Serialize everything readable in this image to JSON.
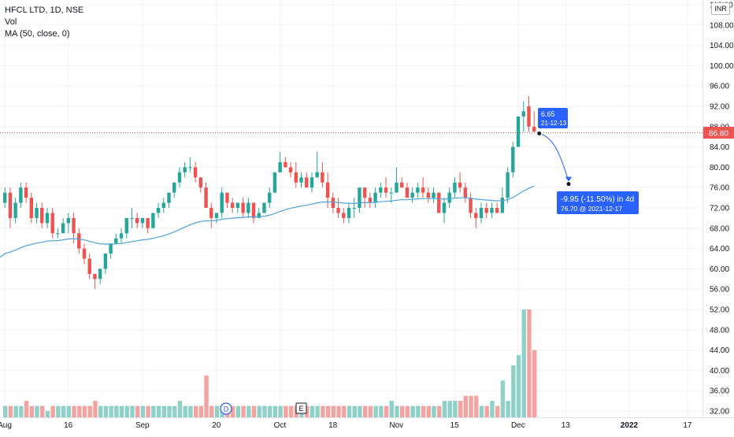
{
  "legend": {
    "symbol": "HFCL LTD, 1D, NSE",
    "vol": "Vol",
    "ma": "MA (50, close, 0)"
  },
  "currency": "INR",
  "last_price": "86.80",
  "colors": {
    "up": "#26a69a",
    "down": "#ef5350",
    "up_vol": "#8fd1c8",
    "down_vol": "#f3a3a0",
    "ma": "#4fa3dc",
    "measure": "#2962ff",
    "last_price": "#ef5350"
  },
  "annotations": {
    "start_box_value": "6.65",
    "start_box_date": "21-12-13",
    "measure_line1": "-9.95 (-11.50%) in 4d",
    "measure_line2": "76.70 @ 2021-12-17",
    "dividend_marker": "D",
    "earnings_marker": "E"
  },
  "chart_data": {
    "type": "candlestick",
    "title": "HFCL LTD, 1D, NSE",
    "ylim": [
      30,
      112
    ],
    "y_ticks": [
      "112.00",
      "108.00",
      "104.00",
      "100.00",
      "96.00",
      "92.00",
      "88.00",
      "84.00",
      "80.00",
      "76.00",
      "72.00",
      "68.00",
      "64.00",
      "60.00",
      "56.00",
      "52.00",
      "48.00",
      "44.00",
      "40.00",
      "36.00",
      "32.00"
    ],
    "x_ticks": [
      "Aug",
      "16",
      "Sep",
      "20",
      "Oct",
      "18",
      "Nov",
      "15",
      "Dec",
      "13",
      "2022",
      "17"
    ],
    "last_price": 86.8,
    "series": [
      {
        "name": "Price",
        "ohlc": [
          [
            73,
            76,
            72,
            75
          ],
          [
            75,
            76,
            68,
            70
          ],
          [
            70,
            74,
            69,
            73
          ],
          [
            73,
            77,
            72,
            76
          ],
          [
            76,
            77,
            73,
            74
          ],
          [
            74,
            75,
            69,
            70
          ],
          [
            70,
            73,
            69,
            72
          ],
          [
            72,
            73,
            68,
            69
          ],
          [
            69,
            72,
            68,
            71
          ],
          [
            71,
            72,
            66,
            67
          ],
          [
            67,
            68,
            66,
            67
          ],
          [
            67,
            70,
            67,
            69
          ],
          [
            69,
            71,
            67,
            70
          ],
          [
            70,
            71,
            65,
            67
          ],
          [
            67,
            68,
            63,
            64
          ],
          [
            64,
            65,
            61,
            62
          ],
          [
            62,
            63,
            58,
            59
          ],
          [
            59,
            59,
            56,
            58
          ],
          [
            58,
            60,
            57,
            60
          ],
          [
            60,
            63,
            59,
            63
          ],
          [
            63,
            65,
            62,
            65
          ],
          [
            65,
            67,
            65,
            66
          ],
          [
            66,
            68,
            65,
            67
          ],
          [
            67,
            70,
            66,
            70
          ],
          [
            70,
            72,
            68,
            70
          ],
          [
            70,
            71,
            68,
            69
          ],
          [
            69,
            70,
            68,
            70
          ],
          [
            70,
            70,
            67,
            68
          ],
          [
            68,
            71,
            68,
            71
          ],
          [
            71,
            73,
            70,
            72
          ],
          [
            72,
            74,
            71,
            73
          ],
          [
            73,
            75,
            72,
            75
          ],
          [
            75,
            77,
            74,
            77
          ],
          [
            77,
            80,
            76,
            79
          ],
          [
            79,
            81,
            78,
            80
          ],
          [
            80,
            82,
            79,
            80
          ],
          [
            80,
            81,
            77,
            78
          ],
          [
            78,
            78,
            75,
            76
          ],
          [
            76,
            77,
            72,
            72
          ],
          [
            72,
            73,
            68,
            70
          ],
          [
            70,
            71,
            69,
            71
          ],
          [
            71,
            76,
            70,
            75
          ],
          [
            75,
            75,
            72,
            73
          ],
          [
            73,
            74,
            71,
            72
          ],
          [
            72,
            73,
            71,
            73
          ],
          [
            73,
            74,
            70,
            71
          ],
          [
            71,
            74,
            70,
            73
          ],
          [
            73,
            73,
            69,
            70
          ],
          [
            70,
            72,
            70,
            71
          ],
          [
            71,
            73,
            71,
            73
          ],
          [
            73,
            76,
            72,
            75
          ],
          [
            75,
            79,
            75,
            79
          ],
          [
            79,
            83,
            79,
            81
          ],
          [
            81,
            82,
            80,
            80
          ],
          [
            80,
            81,
            78,
            79
          ],
          [
            79,
            81,
            76,
            77
          ],
          [
            77,
            79,
            76,
            78
          ],
          [
            78,
            79,
            76,
            76
          ],
          [
            76,
            79,
            75,
            78
          ],
          [
            78,
            83,
            78,
            79
          ],
          [
            79,
            81,
            76,
            77
          ],
          [
            77,
            79,
            72,
            74
          ],
          [
            74,
            75,
            71,
            72
          ],
          [
            72,
            74,
            70,
            71
          ],
          [
            71,
            72,
            69,
            70
          ],
          [
            70,
            73,
            69,
            72
          ],
          [
            72,
            74,
            70,
            72
          ],
          [
            72,
            76,
            71,
            76
          ],
          [
            76,
            76,
            72,
            74
          ],
          [
            74,
            75,
            72,
            73
          ],
          [
            73,
            76,
            72,
            75
          ],
          [
            75,
            77,
            74,
            76
          ],
          [
            76,
            78,
            74,
            75
          ],
          [
            75,
            76,
            73,
            75
          ],
          [
            75,
            80,
            75,
            77
          ],
          [
            77,
            78,
            76,
            76
          ],
          [
            76,
            77,
            74,
            74
          ],
          [
            74,
            76,
            73,
            75
          ],
          [
            75,
            77,
            74,
            76
          ],
          [
            76,
            78,
            74,
            75
          ],
          [
            75,
            76,
            73,
            74
          ],
          [
            74,
            76,
            73,
            75
          ],
          [
            75,
            75,
            71,
            71
          ],
          [
            71,
            74,
            69,
            73
          ],
          [
            73,
            76,
            72,
            75
          ],
          [
            75,
            78,
            74,
            77
          ],
          [
            77,
            79,
            75,
            76
          ],
          [
            76,
            77,
            73,
            74
          ],
          [
            74,
            75,
            70,
            71
          ],
          [
            71,
            72,
            68,
            70
          ],
          [
            70,
            73,
            69,
            72
          ],
          [
            72,
            73,
            70,
            71
          ],
          [
            71,
            73,
            70,
            72
          ],
          [
            72,
            73,
            71,
            71
          ],
          [
            71,
            76,
            71,
            74
          ],
          [
            74,
            80,
            73,
            79
          ],
          [
            79,
            85,
            78,
            84
          ],
          [
            84,
            90,
            84,
            90
          ],
          [
            90,
            93,
            87,
            91
          ],
          [
            92,
            94,
            87,
            88
          ],
          [
            88,
            91,
            87,
            87
          ]
        ]
      },
      {
        "name": "Vol",
        "values": [
          33,
          33,
          33,
          33,
          34,
          33,
          33,
          33,
          32,
          33,
          33,
          33,
          33,
          33,
          33,
          33,
          33,
          34,
          33,
          33,
          33,
          33,
          33,
          33,
          33,
          33,
          33,
          33,
          33,
          33,
          33,
          33,
          33,
          34,
          33,
          33,
          33,
          33,
          39,
          33,
          33,
          33,
          33,
          33,
          33,
          33,
          33,
          33,
          33,
          33,
          33,
          33,
          33,
          33,
          33,
          33,
          33,
          33,
          33,
          33,
          33,
          33,
          33,
          33,
          33,
          33,
          33,
          33,
          33,
          33,
          33,
          33,
          33,
          34,
          33,
          33,
          33,
          33,
          33,
          33,
          33,
          33,
          33,
          34,
          34,
          34,
          34,
          35,
          35,
          35,
          33,
          33,
          34,
          33,
          38,
          34,
          41,
          43,
          52,
          52,
          44
        ]
      },
      {
        "name": "MA (50, close, 0)"
      }
    ]
  }
}
